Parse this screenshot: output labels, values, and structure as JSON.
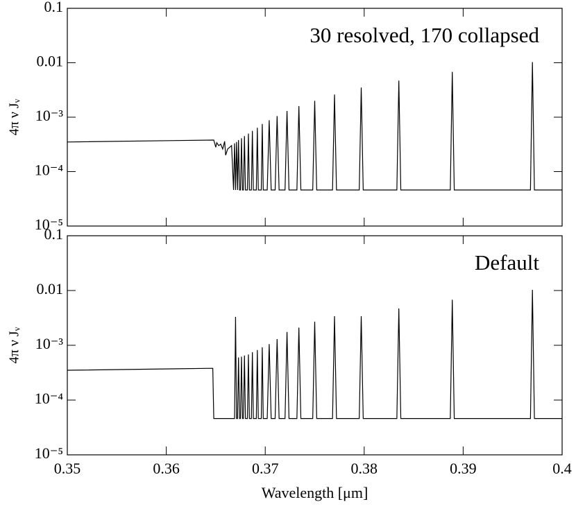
{
  "chart_data": [
    {
      "type": "line",
      "annotation": "30 resolved, 170 collapsed",
      "ylabel": "4π ν Jᵥ",
      "log_y": true,
      "xlim": [
        0.35,
        0.4
      ],
      "ylim": [
        1e-05,
        0.1
      ],
      "yticks": [
        0.1,
        0.01,
        {
          "value": 0.001,
          "label": "10⁻³"
        },
        {
          "value": 0.0001,
          "label": "10⁻⁴"
        },
        {
          "value": 1e-05,
          "label": "10⁻⁵"
        }
      ],
      "x": [
        0.35,
        0.3648,
        0.365,
        0.3651,
        0.3653,
        0.3655,
        0.3657,
        0.3659,
        0.366,
        0.3662,
        0.3666,
        0.3668,
        0.3669,
        0.367,
        0.3671,
        0.3672,
        0.3673,
        0.3674,
        0.3675,
        0.3676,
        0.3677,
        0.3678,
        0.3679,
        0.368,
        0.3682,
        0.3683,
        0.3684,
        0.3686,
        0.3687,
        0.3688,
        0.3691,
        0.3692,
        0.3693,
        0.3696,
        0.3697,
        0.3698,
        0.3702,
        0.3704,
        0.3706,
        0.371,
        0.3712,
        0.3714,
        0.372,
        0.3722,
        0.3724,
        0.3732,
        0.3734,
        0.3736,
        0.3748,
        0.375,
        0.3752,
        0.3768,
        0.377,
        0.3772,
        0.3795,
        0.3797,
        0.3799,
        0.3833,
        0.3835,
        0.3837,
        0.3887,
        0.3889,
        0.3891,
        0.3968,
        0.397,
        0.3972,
        0.4
      ],
      "series": [
        {
          "color": "#000000",
          "values": [
            0.00035,
            0.00038,
            0.00028,
            0.00034,
            0.0003,
            0.00032,
            0.00026,
            0.00036,
            0.0002,
            0.00026,
            0.0003,
            4.6e-05,
            0.00033,
            4.6e-05,
            0.00035,
            4.6e-05,
            0.00038,
            4.6e-05,
            4.6e-05,
            0.00041,
            4.6e-05,
            4.6e-05,
            0.00045,
            4.6e-05,
            4.6e-05,
            0.0005,
            4.6e-05,
            4.6e-05,
            0.00056,
            4.6e-05,
            4.6e-05,
            0.00064,
            4.6e-05,
            4.6e-05,
            0.00075,
            4.6e-05,
            4.6e-05,
            0.00088,
            4.6e-05,
            4.6e-05,
            0.00105,
            4.6e-05,
            4.6e-05,
            0.0013,
            4.6e-05,
            4.6e-05,
            0.0016,
            4.6e-05,
            4.6e-05,
            0.002,
            4.6e-05,
            4.6e-05,
            0.0026,
            4.6e-05,
            4.6e-05,
            0.0035,
            4.6e-05,
            4.6e-05,
            0.0047,
            4.6e-05,
            4.6e-05,
            0.0068,
            4.6e-05,
            4.6e-05,
            0.0103,
            4.6e-05,
            4.6e-05
          ]
        }
      ]
    },
    {
      "type": "line",
      "annotation": "Default",
      "ylabel": "4π ν Jᵥ",
      "xlabel": "Wavelength [μm]",
      "log_y": true,
      "xlim": [
        0.35,
        0.4
      ],
      "ylim": [
        1e-05,
        0.1
      ],
      "xticks": [
        0.35,
        0.36,
        0.37,
        0.38,
        0.39,
        0.4
      ],
      "yticks": [
        0.1,
        0.01,
        {
          "value": 0.001,
          "label": "10⁻³"
        },
        {
          "value": 0.0001,
          "label": "10⁻⁴"
        },
        {
          "value": 1e-05,
          "label": "10⁻⁵"
        }
      ],
      "x": [
        0.35,
        0.3647,
        0.3648,
        0.3669,
        0.367,
        0.3671,
        0.3672,
        0.3673,
        0.3674,
        0.3675,
        0.3676,
        0.3677,
        0.3678,
        0.3679,
        0.368,
        0.3682,
        0.3683,
        0.3684,
        0.3686,
        0.3687,
        0.3688,
        0.3691,
        0.3692,
        0.3693,
        0.3696,
        0.3697,
        0.3698,
        0.3702,
        0.3704,
        0.3706,
        0.371,
        0.3712,
        0.3714,
        0.372,
        0.3722,
        0.3724,
        0.3732,
        0.3734,
        0.3736,
        0.3748,
        0.375,
        0.3752,
        0.3768,
        0.377,
        0.3772,
        0.3795,
        0.3797,
        0.3799,
        0.3833,
        0.3835,
        0.3837,
        0.3887,
        0.3889,
        0.3891,
        0.3968,
        0.397,
        0.3972,
        0.4
      ],
      "series": [
        {
          "color": "#000000",
          "values": [
            0.00035,
            0.00038,
            4.6e-05,
            4.6e-05,
            0.0033,
            4.6e-05,
            4.6e-05,
            0.0006,
            4.6e-05,
            4.6e-05,
            0.00062,
            4.6e-05,
            4.6e-05,
            0.00065,
            4.6e-05,
            4.6e-05,
            0.00068,
            4.6e-05,
            4.6e-05,
            0.00075,
            4.6e-05,
            4.6e-05,
            0.00082,
            4.6e-05,
            4.6e-05,
            0.00092,
            4.6e-05,
            4.6e-05,
            0.00105,
            4.6e-05,
            4.6e-05,
            0.0013,
            4.6e-05,
            4.6e-05,
            0.00175,
            4.6e-05,
            4.6e-05,
            0.0021,
            4.6e-05,
            4.6e-05,
            0.0027,
            4.6e-05,
            4.6e-05,
            0.0034,
            4.6e-05,
            4.6e-05,
            0.0034,
            4.6e-05,
            4.6e-05,
            0.0047,
            4.6e-05,
            4.6e-05,
            0.0068,
            4.6e-05,
            4.6e-05,
            0.0103,
            4.6e-05,
            4.6e-05
          ]
        }
      ]
    }
  ]
}
